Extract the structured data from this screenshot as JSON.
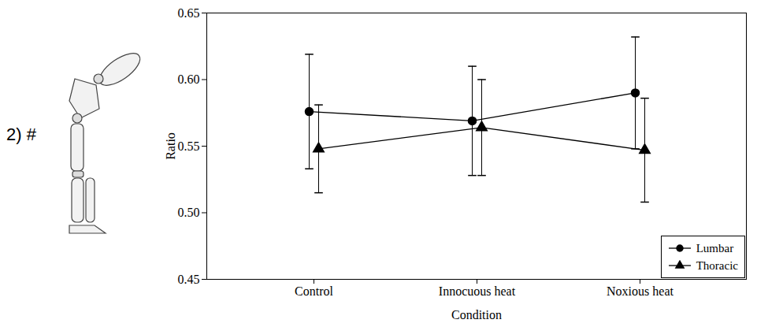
{
  "chart_data": {
    "type": "line",
    "annotations": [
      "2) #"
    ],
    "x_label": "Condition",
    "y_label": "Ratio",
    "categories": [
      "Control",
      "Innocuous heat",
      "Noxious heat"
    ],
    "series": [
      {
        "name": "Lumbar",
        "color": "#000000",
        "marker": "circle",
        "line_style": "solid",
        "values": [
          0.576,
          0.569,
          0.59
        ],
        "errors": [
          0.043,
          0.041,
          0.042
        ]
      },
      {
        "name": "Thoracic",
        "color": "#000000",
        "marker": "triangle",
        "line_style": "solid",
        "values": [
          0.548,
          0.564,
          0.547
        ],
        "errors": [
          0.033,
          0.036,
          0.039
        ]
      }
    ],
    "ylim": [
      0.45,
      0.65
    ],
    "yticks": [
      0.45,
      {
        "value": 0.5,
        "label": "0.50"
      },
      0.55,
      {
        "value": 0.6,
        "label": "0.60"
      },
      0.65
    ],
    "grid": false,
    "legend": "lower right"
  }
}
